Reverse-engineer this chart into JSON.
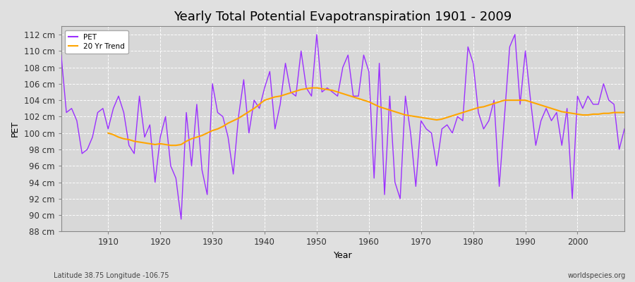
{
  "title": "Yearly Total Potential Evapotranspiration 1901 - 2009",
  "xlabel": "Year",
  "ylabel": "PET",
  "footnote_left": "Latitude 38.75 Longitude -106.75",
  "footnote_right": "worldspecies.org",
  "years": [
    1901,
    1902,
    1903,
    1904,
    1905,
    1906,
    1907,
    1908,
    1909,
    1910,
    1911,
    1912,
    1913,
    1914,
    1915,
    1916,
    1917,
    1918,
    1919,
    1920,
    1921,
    1922,
    1923,
    1924,
    1925,
    1926,
    1927,
    1928,
    1929,
    1930,
    1931,
    1932,
    1933,
    1934,
    1935,
    1936,
    1937,
    1938,
    1939,
    1940,
    1941,
    1942,
    1943,
    1944,
    1945,
    1946,
    1947,
    1948,
    1949,
    1950,
    1951,
    1952,
    1953,
    1954,
    1955,
    1956,
    1957,
    1958,
    1959,
    1960,
    1961,
    1962,
    1963,
    1964,
    1965,
    1966,
    1967,
    1968,
    1969,
    1970,
    1971,
    1972,
    1973,
    1974,
    1975,
    1976,
    1977,
    1978,
    1979,
    1980,
    1981,
    1982,
    1983,
    1984,
    1985,
    1986,
    1987,
    1988,
    1989,
    1990,
    1991,
    1992,
    1993,
    1994,
    1995,
    1996,
    1997,
    1998,
    1999,
    2000,
    2001,
    2002,
    2003,
    2004,
    2005,
    2006,
    2007,
    2008,
    2009
  ],
  "pet": [
    109.5,
    102.5,
    103.0,
    101.5,
    97.5,
    98.0,
    99.5,
    102.5,
    103.0,
    100.5,
    103.0,
    104.5,
    102.5,
    98.5,
    97.5,
    104.5,
    99.5,
    101.0,
    94.0,
    99.5,
    102.0,
    96.0,
    94.5,
    89.5,
    102.5,
    96.0,
    103.5,
    95.5,
    92.5,
    106.0,
    102.5,
    102.0,
    99.5,
    95.0,
    102.0,
    106.5,
    100.0,
    104.0,
    103.0,
    105.5,
    107.5,
    100.5,
    103.5,
    108.5,
    105.0,
    104.5,
    110.0,
    105.5,
    104.5,
    112.0,
    105.0,
    105.5,
    105.0,
    104.5,
    108.0,
    109.5,
    104.5,
    104.5,
    109.5,
    107.5,
    94.5,
    108.5,
    92.5,
    104.5,
    94.0,
    92.0,
    104.5,
    100.0,
    93.5,
    101.5,
    100.5,
    100.0,
    96.0,
    100.5,
    101.0,
    100.0,
    102.0,
    101.5,
    110.5,
    108.5,
    102.5,
    100.5,
    101.5,
    104.0,
    93.5,
    102.0,
    110.5,
    112.0,
    103.5,
    110.0,
    104.0,
    98.5,
    101.5,
    103.0,
    101.5,
    102.5,
    98.5,
    103.0,
    92.0,
    104.5,
    103.0,
    104.5,
    103.5,
    103.5,
    106.0,
    104.0,
    103.5,
    98.0,
    100.5
  ],
  "trend": [
    null,
    null,
    null,
    null,
    null,
    null,
    null,
    null,
    null,
    100.0,
    99.8,
    99.5,
    99.3,
    99.2,
    99.0,
    98.9,
    98.8,
    98.7,
    98.6,
    98.7,
    98.6,
    98.5,
    98.5,
    98.6,
    99.0,
    99.3,
    99.5,
    99.7,
    100.0,
    100.3,
    100.5,
    100.8,
    101.2,
    101.5,
    101.8,
    102.2,
    102.6,
    103.0,
    103.5,
    104.0,
    104.2,
    104.4,
    104.5,
    104.7,
    104.9,
    105.1,
    105.3,
    105.4,
    105.5,
    105.5,
    105.4,
    105.3,
    105.2,
    105.0,
    104.8,
    104.6,
    104.4,
    104.2,
    104.0,
    103.8,
    103.5,
    103.2,
    103.0,
    102.8,
    102.6,
    102.4,
    102.2,
    102.1,
    102.0,
    101.9,
    101.8,
    101.7,
    101.6,
    101.7,
    101.9,
    102.1,
    102.3,
    102.5,
    102.7,
    102.9,
    103.1,
    103.2,
    103.4,
    103.6,
    103.8,
    104.0,
    104.0,
    104.0,
    104.0,
    104.0,
    103.8,
    103.6,
    103.4,
    103.2,
    103.0,
    102.8,
    102.6,
    102.5,
    102.4,
    102.3,
    102.2,
    102.2,
    102.3,
    102.3,
    102.4,
    102.4,
    102.5,
    102.5,
    102.5
  ],
  "pet_color": "#9B30FF",
  "trend_color": "#FFA500",
  "fig_bg_color": "#E0E0E0",
  "plot_bg_color": "#D8D8D8",
  "grid_color": "#FFFFFF",
  "ylim": [
    88,
    113
  ],
  "yticks": [
    88,
    90,
    92,
    94,
    96,
    98,
    100,
    102,
    104,
    106,
    108,
    110,
    112
  ],
  "ytick_labels": [
    "88 cm",
    "90 cm",
    "92 cm",
    "94 cm",
    "96 cm",
    "98 cm",
    "100 cm",
    "102 cm",
    "104 cm",
    "106 cm",
    "108 cm",
    "110 cm",
    "112 cm"
  ],
  "xticks": [
    1910,
    1920,
    1930,
    1940,
    1950,
    1960,
    1970,
    1980,
    1990,
    2000
  ],
  "title_fontsize": 13,
  "axis_fontsize": 8.5,
  "label_fontsize": 9
}
